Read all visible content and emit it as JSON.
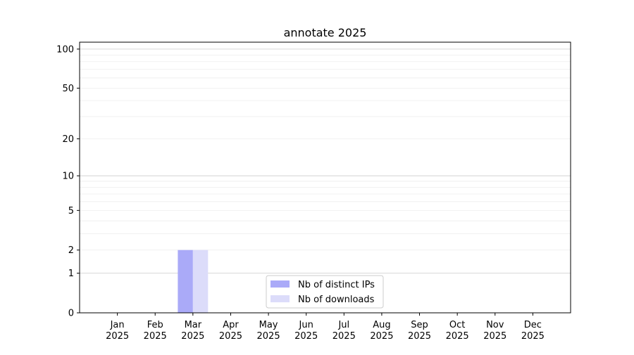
{
  "chart_data": {
    "type": "bar",
    "title": "annotate 2025",
    "xlabel": "",
    "ylabel": "",
    "categories": [
      "Jan\n2025",
      "Feb\n2025",
      "Mar\n2025",
      "Apr\n2025",
      "May\n2025",
      "Jun\n2025",
      "Jul\n2025",
      "Aug\n2025",
      "Sep\n2025",
      "Oct\n2025",
      "Nov\n2025",
      "Dec\n2025"
    ],
    "y_scale": "log(1+y)",
    "ylim": [
      0,
      113
    ],
    "y_ticks": [
      0,
      1,
      2,
      5,
      10,
      20,
      50,
      100
    ],
    "grid": true,
    "legend_position": "bottom-center",
    "series": [
      {
        "name": "Nb of distinct IPs",
        "color": "#aaaaf8",
        "values": [
          0,
          0,
          2,
          0,
          0,
          0,
          0,
          0,
          0,
          0,
          0,
          0
        ]
      },
      {
        "name": "Nb of downloads",
        "color": "#dcdcfa",
        "values": [
          0,
          0,
          2,
          0,
          0,
          0,
          0,
          0,
          0,
          0,
          0,
          0
        ]
      }
    ]
  }
}
